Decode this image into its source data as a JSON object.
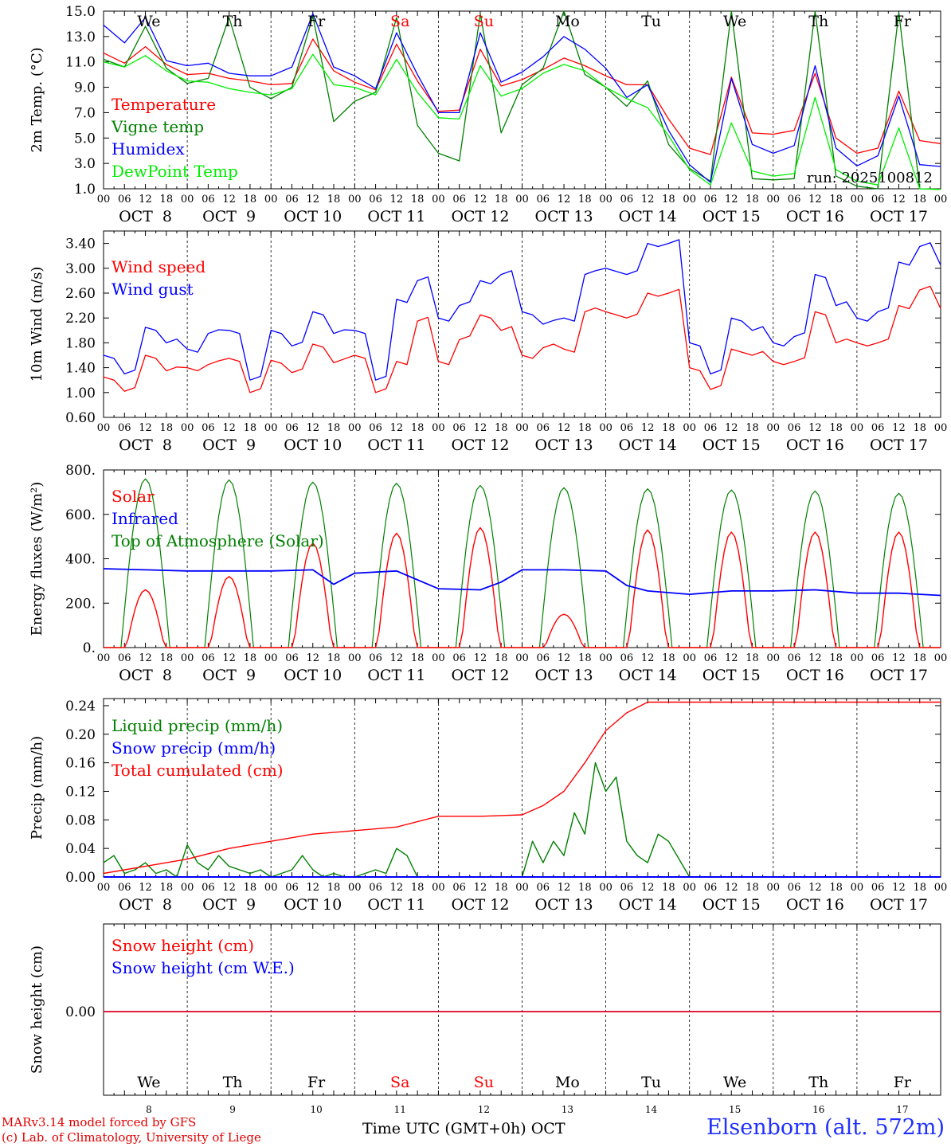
{
  "chart_data": [
    {
      "type": "line",
      "ylabel": "2m Temp. (°C)",
      "ylim": [
        1.0,
        15.0
      ],
      "yticks": [
        "15.0",
        "13.0",
        "11.0",
        "9.0",
        "7.0",
        "5.0",
        "3.0",
        "1.0"
      ],
      "grid": "vertical dashed at day boundaries",
      "legend_position": "left",
      "weekday_labels": [
        "We",
        "Th",
        "Fr",
        "Sa",
        "Su",
        "Mo",
        "Tu",
        "We",
        "Th",
        "Fr"
      ],
      "annotation": "run: 2025100812",
      "x_hours": [
        0,
        6,
        12,
        18,
        24,
        30,
        36,
        42,
        48,
        54,
        60,
        66,
        72,
        78,
        84,
        90,
        96,
        102,
        108,
        114,
        120,
        126,
        132,
        138,
        144,
        150,
        156,
        162,
        168,
        174,
        180,
        186,
        192,
        198,
        204,
        210,
        216,
        222,
        228,
        234
      ],
      "series": [
        {
          "name": "Temperature",
          "color": "#ff0000",
          "values": [
            11.7,
            10.9,
            12.2,
            10.8,
            10.0,
            10.1,
            9.7,
            9.5,
            9.2,
            9.3,
            12.8,
            10.3,
            9.4,
            8.8,
            12.4,
            9.5,
            7.1,
            7.2,
            12.0,
            9.1,
            9.6,
            10.4,
            11.3,
            10.7,
            9.9,
            9.2,
            9.2,
            6.5,
            4.2,
            3.7,
            9.8,
            5.4,
            5.3,
            5.6,
            10.1,
            5.0,
            3.8,
            4.2,
            8.7,
            4.8
          ]
        },
        {
          "name": "Vigne temp",
          "color": "#008000",
          "values": [
            11.2,
            10.6,
            13.8,
            10.5,
            9.3,
            9.7,
            14.5,
            9.0,
            8.1,
            9.0,
            14.6,
            6.3,
            7.9,
            8.6,
            14.5,
            6.0,
            3.8,
            3.2,
            14.8,
            5.4,
            9.2,
            10.5,
            15.0,
            10.0,
            9.0,
            7.5,
            9.5,
            4.5,
            2.6,
            1.6,
            15.0,
            1.8,
            1.7,
            1.8,
            15.0,
            2.0,
            1.2,
            1.0,
            14.9,
            1.0
          ]
        },
        {
          "name": "Humidex",
          "color": "#0000ff",
          "values": [
            13.9,
            12.5,
            14.5,
            11.1,
            10.7,
            10.9,
            10.1,
            9.9,
            9.9,
            10.6,
            14.8,
            10.6,
            9.9,
            8.9,
            13.3,
            10.0,
            7.0,
            7.0,
            13.3,
            9.4,
            10.2,
            11.4,
            13.0,
            12.0,
            10.5,
            8.2,
            9.2,
            5.6,
            2.9,
            1.5,
            9.7,
            4.5,
            3.8,
            4.4,
            10.7,
            4.2,
            2.8,
            3.6,
            8.3,
            2.9
          ]
        },
        {
          "name": "DewPoint Temp",
          "color": "#00ee00",
          "values": [
            11.0,
            10.6,
            11.5,
            10.3,
            9.5,
            9.4,
            8.9,
            8.6,
            8.4,
            8.9,
            11.6,
            9.2,
            9.0,
            8.4,
            11.2,
            8.6,
            6.6,
            6.5,
            10.7,
            8.3,
            8.9,
            10.1,
            10.8,
            10.3,
            9.0,
            8.1,
            7.4,
            5.2,
            2.5,
            1.3,
            6.2,
            2.4,
            2.0,
            2.2,
            8.2,
            2.5,
            1.6,
            1.3,
            5.8,
            1.0
          ]
        }
      ]
    },
    {
      "type": "line",
      "ylabel": "10m Wind (m/s)",
      "ylim": [
        0.6,
        3.6
      ],
      "yticks": [
        "3.40",
        "3.00",
        "2.60",
        "2.20",
        "1.80",
        "1.40",
        "1.00",
        "0.60"
      ],
      "grid": "vertical dashed at day boundaries",
      "legend_position": "left",
      "x_hours": [
        0,
        6,
        12,
        18,
        24,
        30,
        36,
        42,
        48,
        54,
        60,
        66,
        72,
        78,
        84,
        90,
        96,
        102,
        108,
        114,
        120,
        126,
        132,
        138,
        144,
        150,
        156,
        162,
        168,
        174,
        180,
        186,
        192,
        198,
        204,
        210,
        216,
        222,
        228,
        234
      ],
      "series": [
        {
          "name": "Wind speed",
          "color": "#ff0000",
          "values": [
            1.25,
            1.02,
            1.6,
            1.35,
            1.4,
            1.45,
            1.55,
            1.0,
            1.52,
            1.32,
            1.78,
            1.48,
            1.6,
            1.0,
            1.5,
            2.15,
            1.5,
            1.85,
            2.25,
            2.0,
            1.6,
            1.72,
            1.7,
            2.3,
            2.3,
            2.2,
            2.6,
            2.6,
            1.4,
            1.05,
            1.7,
            1.6,
            1.5,
            1.5,
            2.3,
            1.8,
            1.8,
            1.8,
            2.4,
            2.65
          ]
        },
        {
          "name": "Wind gust",
          "color": "#0000ff",
          "values": [
            1.6,
            1.3,
            2.05,
            1.8,
            1.7,
            1.95,
            2.0,
            1.2,
            2.0,
            1.75,
            2.3,
            1.95,
            2.0,
            1.2,
            2.5,
            2.8,
            2.2,
            2.4,
            2.8,
            2.9,
            2.3,
            2.1,
            2.2,
            2.9,
            3.0,
            2.9,
            3.4,
            3.4,
            1.8,
            1.3,
            2.2,
            2.0,
            1.8,
            1.9,
            2.9,
            2.4,
            2.2,
            2.3,
            3.1,
            3.35
          ]
        }
      ]
    },
    {
      "type": "line",
      "ylabel": "Energy fluxes (W/m²)",
      "ylim": [
        0,
        800
      ],
      "yticks": [
        "800.",
        "600.",
        "400.",
        "200.",
        "0."
      ],
      "grid": "vertical dashed at day boundaries",
      "legend_position": "left",
      "series": [
        {
          "name": "Solar",
          "color": "#ff0000",
          "daily_peak": [
            260,
            320,
            470,
            515,
            540,
            150,
            530,
            520,
            520,
            520
          ]
        },
        {
          "name": "Infrared",
          "color": "#0000ff",
          "x_hours": [
            0,
            12,
            24,
            36,
            48,
            60,
            66,
            72,
            84,
            96,
            108,
            114,
            120,
            132,
            144,
            150,
            156,
            168,
            180,
            192,
            204,
            216,
            228,
            240
          ],
          "values": [
            355,
            350,
            345,
            345,
            345,
            350,
            285,
            335,
            345,
            265,
            260,
            295,
            350,
            350,
            345,
            280,
            255,
            240,
            255,
            255,
            260,
            245,
            245,
            235
          ]
        },
        {
          "name": "Top of Atmosphere (Solar)",
          "color": "#008000",
          "daily_peak": [
            760,
            755,
            745,
            740,
            730,
            720,
            715,
            710,
            705,
            695
          ]
        }
      ]
    },
    {
      "type": "line",
      "ylabel": "Precip (mm/h)",
      "ylim": [
        0.0,
        0.25
      ],
      "yticks": [
        "0.24",
        "0.20",
        "0.16",
        "0.12",
        "0.08",
        "0.04",
        "0.00"
      ],
      "grid": "vertical dashed at day boundaries",
      "legend_position": "left",
      "series": [
        {
          "name": "Liquid precip (mm/h)",
          "color": "#008000",
          "x_hours": [
            0,
            3,
            6,
            9,
            12,
            15,
            18,
            21,
            24,
            27,
            30,
            33,
            36,
            39,
            42,
            45,
            48,
            51,
            54,
            57,
            60,
            63,
            66,
            69,
            72,
            75,
            78,
            81,
            84,
            87,
            90,
            96,
            102,
            108,
            114,
            120,
            123,
            126,
            129,
            132,
            135,
            138,
            141,
            144,
            147,
            150,
            153,
            156,
            159,
            162,
            168,
            240
          ],
          "values": [
            0.02,
            0.03,
            0.005,
            0.01,
            0.02,
            0.005,
            0.01,
            0.0,
            0.045,
            0.02,
            0.01,
            0.03,
            0.015,
            0.01,
            0.005,
            0.01,
            0.0,
            0.005,
            0.01,
            0.03,
            0.01,
            0.0,
            0.005,
            0.0,
            0.0,
            0.005,
            0.01,
            0.005,
            0.04,
            0.03,
            0.0,
            0.0,
            0.0,
            0.0,
            0.0,
            0.0,
            0.05,
            0.02,
            0.05,
            0.03,
            0.09,
            0.06,
            0.16,
            0.12,
            0.14,
            0.05,
            0.03,
            0.02,
            0.06,
            0.05,
            0.0,
            0.0
          ]
        },
        {
          "name": "Snow precip (mm/h)",
          "color": "#0000ff",
          "x_hours": [
            0,
            240
          ],
          "values": [
            0.0,
            0.0
          ]
        },
        {
          "name": "Total cumulated (cm)",
          "color": "#ff0000",
          "x_hours": [
            0,
            12,
            24,
            36,
            48,
            60,
            72,
            84,
            96,
            108,
            120,
            126,
            132,
            138,
            144,
            150,
            156,
            168,
            240
          ],
          "values": [
            0.005,
            0.015,
            0.025,
            0.04,
            0.05,
            0.06,
            0.065,
            0.07,
            0.085,
            0.085,
            0.087,
            0.1,
            0.12,
            0.16,
            0.205,
            0.23,
            0.245,
            0.245,
            0.245
          ]
        }
      ]
    },
    {
      "type": "line",
      "ylabel": "Snow height (cm)",
      "yticks": [
        "0.00"
      ],
      "legend_position": "left",
      "series": [
        {
          "name": "Snow height (cm)",
          "color": "#ff0000",
          "values": [
            0.0,
            0.0
          ]
        },
        {
          "name": "Snow height (cm W.E.)",
          "color": "#0000ff",
          "values": [
            0.0,
            0.0
          ]
        }
      ],
      "weekday_labels": [
        "We",
        "Th",
        "Fr",
        "Sa",
        "Su",
        "Mo",
        "Tu",
        "We",
        "Th",
        "Fr"
      ],
      "day_numbers": [
        "8",
        "9",
        "10",
        "11",
        "12",
        "13",
        "14",
        "15",
        "16",
        "17"
      ]
    }
  ],
  "x_axis": {
    "hour_labels": [
      "00",
      "06",
      "12",
      "18"
    ],
    "last_label": "00",
    "day_labels": [
      "OCT  8",
      "OCT  9",
      "OCT 10",
      "OCT 11",
      "OCT 12",
      "OCT 13",
      "OCT 14",
      "OCT 15",
      "OCT 16",
      "OCT 17"
    ],
    "weekend_color": "#ff0000",
    "weekday_color": "#000000"
  },
  "footer": {
    "model_line": "MARv3.14 model forced by GFS",
    "copyright_line": "(c) Lab. of Climatology, University of Liege",
    "x_title": "Time UTC (GMT+0h) OCT",
    "station": "Elsenborn (alt. 572m)"
  }
}
